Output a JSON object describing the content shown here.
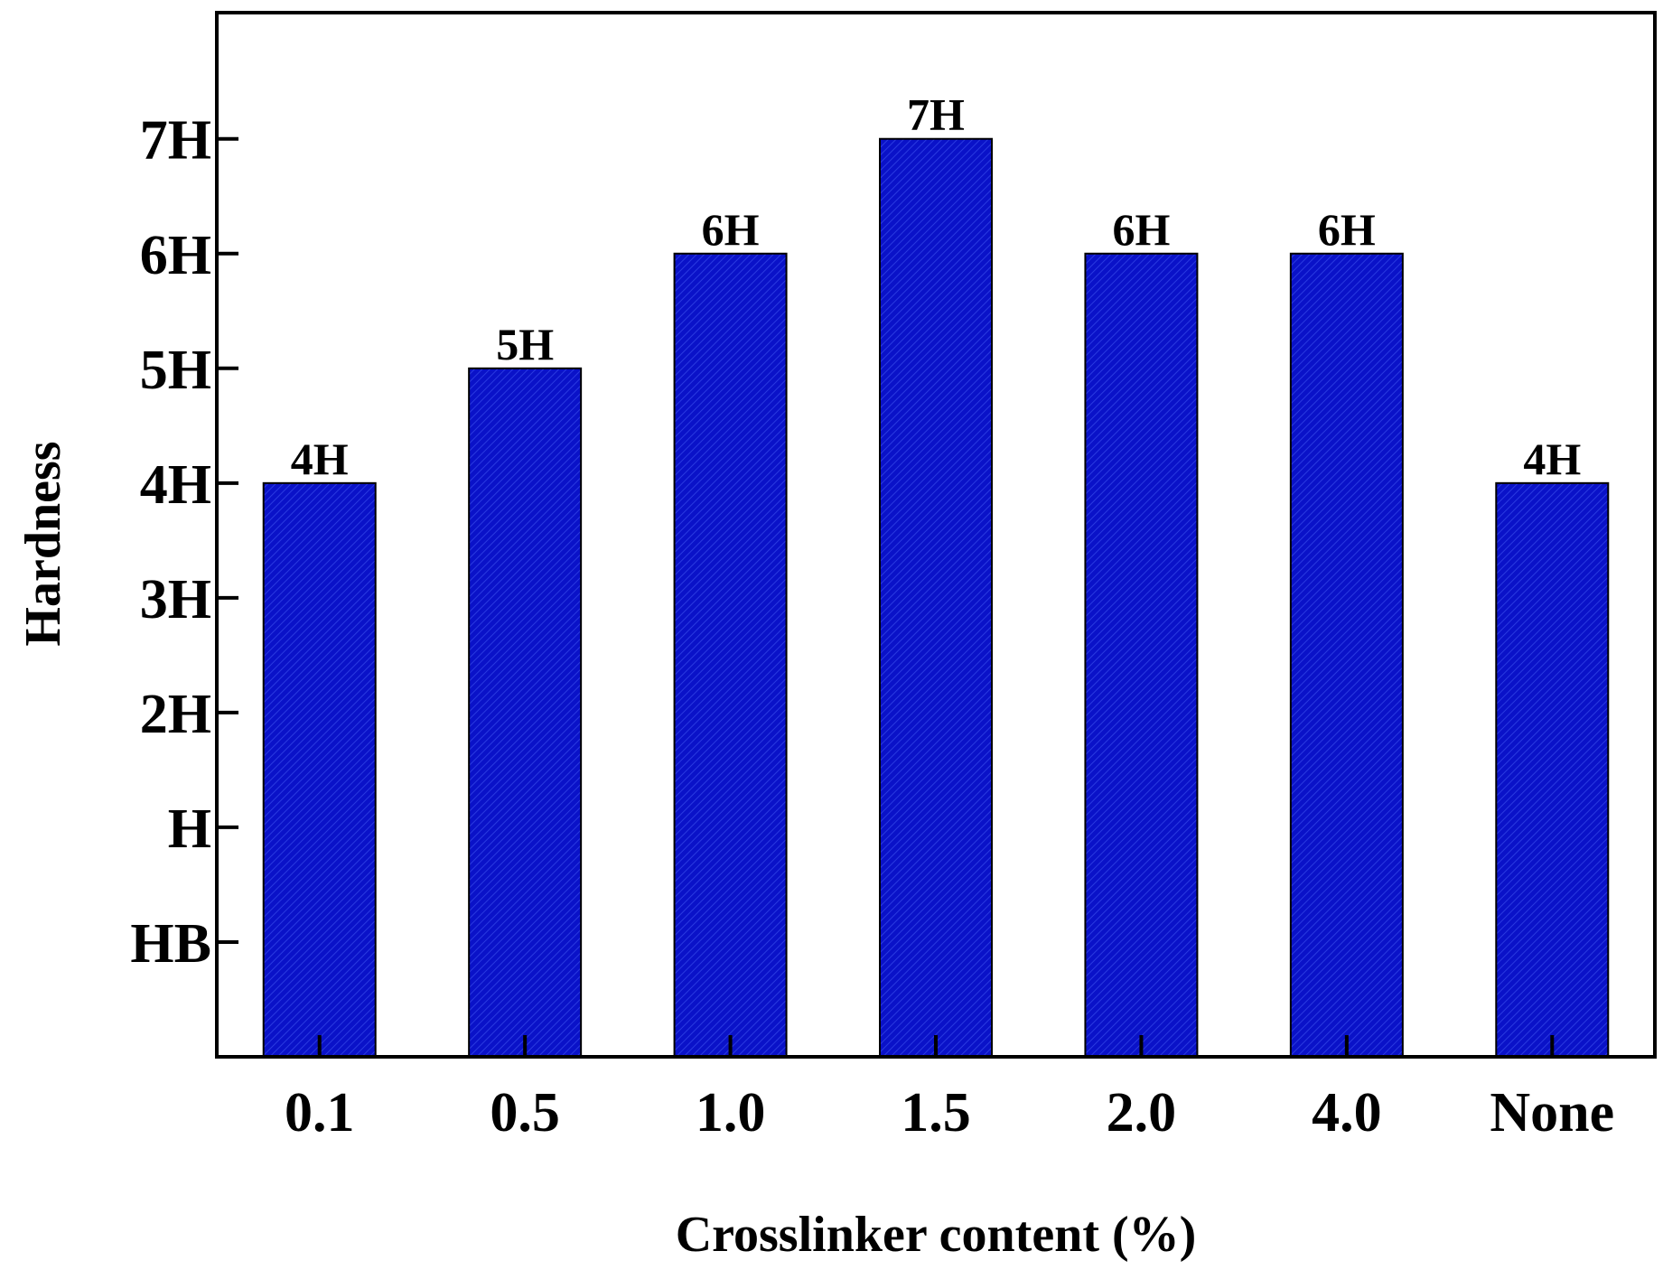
{
  "chart_data": {
    "type": "bar",
    "title": "",
    "xlabel": "Crosslinker content (%)",
    "ylabel": "Hardness",
    "categories": [
      "0.1",
      "0.5",
      "1.0",
      "1.5",
      "2.0",
      "4.0",
      "None"
    ],
    "values": [
      4,
      5,
      6,
      7,
      6,
      6,
      4
    ],
    "data_labels": [
      "4H",
      "5H",
      "6H",
      "7H",
      "6H",
      "6H",
      "4H"
    ],
    "y_ticks": [
      {
        "value": 0,
        "label": "HB"
      },
      {
        "value": 1,
        "label": "H"
      },
      {
        "value": 2,
        "label": "2H"
      },
      {
        "value": 3,
        "label": "3H"
      },
      {
        "value": 4,
        "label": "4H"
      },
      {
        "value": 5,
        "label": "5H"
      },
      {
        "value": 6,
        "label": "6H"
      },
      {
        "value": 7,
        "label": "7H"
      }
    ],
    "ylim": [
      -1,
      8.1
    ],
    "grid": false,
    "legend": "none",
    "colors": {
      "bar": "#0a12c8",
      "bar_hatch": "#2a3ae0",
      "axis": "#000000"
    }
  }
}
